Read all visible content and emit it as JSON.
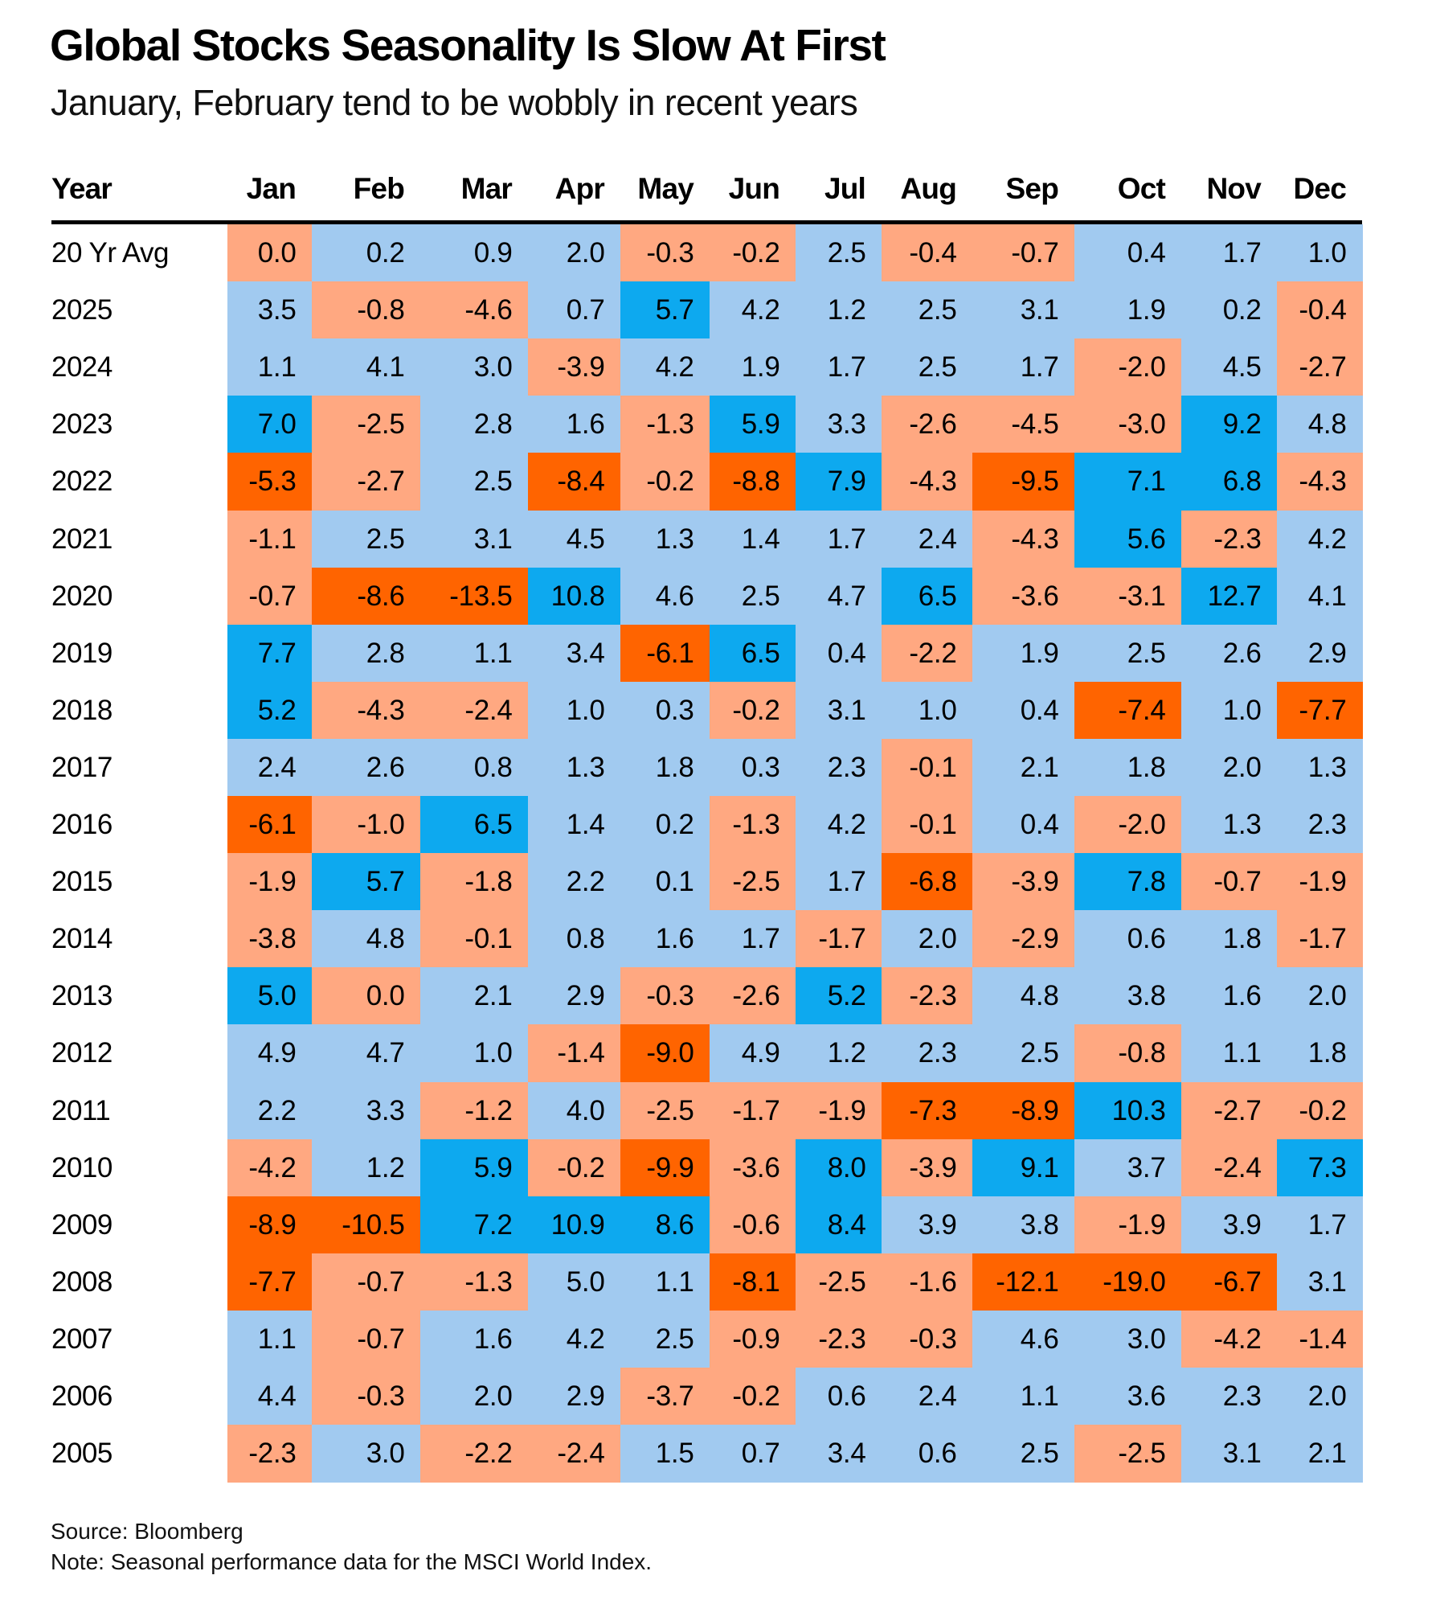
{
  "header": {
    "title": "Global Stocks Seasonality Is Slow At First",
    "subtitle": "January, February tend to be wobbly in recent years"
  },
  "footer": {
    "source": "Source: Bloomberg",
    "note": "Note: Seasonal performance data for the MSCI World Index."
  },
  "colors": {
    "strong_neg": "#FF6400",
    "neg": "#FFA881",
    "pos": "#A1CAF0",
    "strong_pos": "#0DA9EF"
  },
  "chart_data": {
    "type": "heatmap",
    "title": "Global Stocks Seasonality Is Slow At First",
    "subtitle": "January, February tend to be wobbly in recent years",
    "row_header": "Year",
    "columns": [
      "Jan",
      "Feb",
      "Mar",
      "Apr",
      "May",
      "Jun",
      "Jul",
      "Aug",
      "Sep",
      "Oct",
      "Nov",
      "Dec"
    ],
    "legend": "none",
    "color_scale": "diverging: deep orange (<= -5), light orange (<= 0), light blue (> 0), bright blue (>= 5)",
    "rows": [
      {
        "label": "20 Yr Avg",
        "values": [
          "0.0",
          "0.2",
          "0.9",
          "2.0",
          "-0.3",
          "-0.2",
          "2.5",
          "-0.4",
          "-0.7",
          "0.4",
          "1.7",
          "1.0"
        ],
        "shade": [
          "neg",
          "pos",
          "pos",
          "pos",
          "neg",
          "neg",
          "pos",
          "neg",
          "neg",
          "pos",
          "pos",
          "pos"
        ]
      },
      {
        "label": "2025",
        "values": [
          "3.5",
          "-0.8",
          "-4.6",
          "0.7",
          "5.7",
          "4.2",
          "1.2",
          "2.5",
          "3.1",
          "1.9",
          "0.2",
          "-0.4"
        ],
        "shade": [
          "pos",
          "neg",
          "neg",
          "pos",
          "strong_pos",
          "pos",
          "pos",
          "pos",
          "pos",
          "pos",
          "pos",
          "neg"
        ]
      },
      {
        "label": "2024",
        "values": [
          "1.1",
          "4.1",
          "3.0",
          "-3.9",
          "4.2",
          "1.9",
          "1.7",
          "2.5",
          "1.7",
          "-2.0",
          "4.5",
          "-2.7"
        ],
        "shade": [
          "pos",
          "pos",
          "pos",
          "neg",
          "pos",
          "pos",
          "pos",
          "pos",
          "pos",
          "neg",
          "pos",
          "neg"
        ]
      },
      {
        "label": "2023",
        "values": [
          "7.0",
          "-2.5",
          "2.8",
          "1.6",
          "-1.3",
          "5.9",
          "3.3",
          "-2.6",
          "-4.5",
          "-3.0",
          "9.2",
          "4.8"
        ],
        "shade": [
          "strong_pos",
          "neg",
          "pos",
          "pos",
          "neg",
          "strong_pos",
          "pos",
          "neg",
          "neg",
          "neg",
          "strong_pos",
          "pos"
        ]
      },
      {
        "label": "2022",
        "values": [
          "-5.3",
          "-2.7",
          "2.5",
          "-8.4",
          "-0.2",
          "-8.8",
          "7.9",
          "-4.3",
          "-9.5",
          "7.1",
          "6.8",
          "-4.3"
        ],
        "shade": [
          "strong_neg",
          "neg",
          "pos",
          "strong_neg",
          "neg",
          "strong_neg",
          "strong_pos",
          "neg",
          "strong_neg",
          "strong_pos",
          "strong_pos",
          "neg"
        ]
      },
      {
        "label": "2021",
        "values": [
          "-1.1",
          "2.5",
          "3.1",
          "4.5",
          "1.3",
          "1.4",
          "1.7",
          "2.4",
          "-4.3",
          "5.6",
          "-2.3",
          "4.2"
        ],
        "shade": [
          "neg",
          "pos",
          "pos",
          "pos",
          "pos",
          "pos",
          "pos",
          "pos",
          "neg",
          "strong_pos",
          "neg",
          "pos"
        ]
      },
      {
        "label": "2020",
        "values": [
          "-0.7",
          "-8.6",
          "-13.5",
          "10.8",
          "4.6",
          "2.5",
          "4.7",
          "6.5",
          "-3.6",
          "-3.1",
          "12.7",
          "4.1"
        ],
        "shade": [
          "neg",
          "strong_neg",
          "strong_neg",
          "strong_pos",
          "pos",
          "pos",
          "pos",
          "strong_pos",
          "neg",
          "neg",
          "strong_pos",
          "pos"
        ]
      },
      {
        "label": "2019",
        "values": [
          "7.7",
          "2.8",
          "1.1",
          "3.4",
          "-6.1",
          "6.5",
          "0.4",
          "-2.2",
          "1.9",
          "2.5",
          "2.6",
          "2.9"
        ],
        "shade": [
          "strong_pos",
          "pos",
          "pos",
          "pos",
          "strong_neg",
          "strong_pos",
          "pos",
          "neg",
          "pos",
          "pos",
          "pos",
          "pos"
        ]
      },
      {
        "label": "2018",
        "values": [
          "5.2",
          "-4.3",
          "-2.4",
          "1.0",
          "0.3",
          "-0.2",
          "3.1",
          "1.0",
          "0.4",
          "-7.4",
          "1.0",
          "-7.7"
        ],
        "shade": [
          "strong_pos",
          "neg",
          "neg",
          "pos",
          "pos",
          "neg",
          "pos",
          "pos",
          "pos",
          "strong_neg",
          "pos",
          "strong_neg"
        ]
      },
      {
        "label": "2017",
        "values": [
          "2.4",
          "2.6",
          "0.8",
          "1.3",
          "1.8",
          "0.3",
          "2.3",
          "-0.1",
          "2.1",
          "1.8",
          "2.0",
          "1.3"
        ],
        "shade": [
          "pos",
          "pos",
          "pos",
          "pos",
          "pos",
          "pos",
          "pos",
          "neg",
          "pos",
          "pos",
          "pos",
          "pos"
        ]
      },
      {
        "label": "2016",
        "values": [
          "-6.1",
          "-1.0",
          "6.5",
          "1.4",
          "0.2",
          "-1.3",
          "4.2",
          "-0.1",
          "0.4",
          "-2.0",
          "1.3",
          "2.3"
        ],
        "shade": [
          "strong_neg",
          "neg",
          "strong_pos",
          "pos",
          "pos",
          "neg",
          "pos",
          "neg",
          "pos",
          "neg",
          "pos",
          "pos"
        ]
      },
      {
        "label": "2015",
        "values": [
          "-1.9",
          "5.7",
          "-1.8",
          "2.2",
          "0.1",
          "-2.5",
          "1.7",
          "-6.8",
          "-3.9",
          "7.8",
          "-0.7",
          "-1.9"
        ],
        "shade": [
          "neg",
          "strong_pos",
          "neg",
          "pos",
          "pos",
          "neg",
          "pos",
          "strong_neg",
          "neg",
          "strong_pos",
          "neg",
          "neg"
        ]
      },
      {
        "label": "2014",
        "values": [
          "-3.8",
          "4.8",
          "-0.1",
          "0.8",
          "1.6",
          "1.7",
          "-1.7",
          "2.0",
          "-2.9",
          "0.6",
          "1.8",
          "-1.7"
        ],
        "shade": [
          "neg",
          "pos",
          "neg",
          "pos",
          "pos",
          "pos",
          "neg",
          "pos",
          "neg",
          "pos",
          "pos",
          "neg"
        ]
      },
      {
        "label": "2013",
        "values": [
          "5.0",
          "0.0",
          "2.1",
          "2.9",
          "-0.3",
          "-2.6",
          "5.2",
          "-2.3",
          "4.8",
          "3.8",
          "1.6",
          "2.0"
        ],
        "shade": [
          "strong_pos",
          "neg",
          "pos",
          "pos",
          "neg",
          "neg",
          "strong_pos",
          "neg",
          "pos",
          "pos",
          "pos",
          "pos"
        ]
      },
      {
        "label": "2012",
        "values": [
          "4.9",
          "4.7",
          "1.0",
          "-1.4",
          "-9.0",
          "4.9",
          "1.2",
          "2.3",
          "2.5",
          "-0.8",
          "1.1",
          "1.8"
        ],
        "shade": [
          "pos",
          "pos",
          "pos",
          "neg",
          "strong_neg",
          "pos",
          "pos",
          "pos",
          "pos",
          "neg",
          "pos",
          "pos"
        ]
      },
      {
        "label": "2011",
        "values": [
          "2.2",
          "3.3",
          "-1.2",
          "4.0",
          "-2.5",
          "-1.7",
          "-1.9",
          "-7.3",
          "-8.9",
          "10.3",
          "-2.7",
          "-0.2"
        ],
        "shade": [
          "pos",
          "pos",
          "neg",
          "pos",
          "neg",
          "neg",
          "neg",
          "strong_neg",
          "strong_neg",
          "strong_pos",
          "neg",
          "neg"
        ]
      },
      {
        "label": "2010",
        "values": [
          "-4.2",
          "1.2",
          "5.9",
          "-0.2",
          "-9.9",
          "-3.6",
          "8.0",
          "-3.9",
          "9.1",
          "3.7",
          "-2.4",
          "7.3"
        ],
        "shade": [
          "neg",
          "pos",
          "strong_pos",
          "neg",
          "strong_neg",
          "neg",
          "strong_pos",
          "neg",
          "strong_pos",
          "pos",
          "neg",
          "strong_pos"
        ]
      },
      {
        "label": "2009",
        "values": [
          "-8.9",
          "-10.5",
          "7.2",
          "10.9",
          "8.6",
          "-0.6",
          "8.4",
          "3.9",
          "3.8",
          "-1.9",
          "3.9",
          "1.7"
        ],
        "shade": [
          "strong_neg",
          "strong_neg",
          "strong_pos",
          "strong_pos",
          "strong_pos",
          "neg",
          "strong_pos",
          "pos",
          "pos",
          "neg",
          "pos",
          "pos"
        ]
      },
      {
        "label": "2008",
        "values": [
          "-7.7",
          "-0.7",
          "-1.3",
          "5.0",
          "1.1",
          "-8.1",
          "-2.5",
          "-1.6",
          "-12.1",
          "-19.0",
          "-6.7",
          "3.1"
        ],
        "shade": [
          "strong_neg",
          "neg",
          "neg",
          "pos",
          "pos",
          "strong_neg",
          "neg",
          "neg",
          "strong_neg",
          "strong_neg",
          "strong_neg",
          "pos"
        ]
      },
      {
        "label": "2007",
        "values": [
          "1.1",
          "-0.7",
          "1.6",
          "4.2",
          "2.5",
          "-0.9",
          "-2.3",
          "-0.3",
          "4.6",
          "3.0",
          "-4.2",
          "-1.4"
        ],
        "shade": [
          "pos",
          "neg",
          "pos",
          "pos",
          "pos",
          "neg",
          "neg",
          "neg",
          "pos",
          "pos",
          "neg",
          "neg"
        ]
      },
      {
        "label": "2006",
        "values": [
          "4.4",
          "-0.3",
          "2.0",
          "2.9",
          "-3.7",
          "-0.2",
          "0.6",
          "2.4",
          "1.1",
          "3.6",
          "2.3",
          "2.0"
        ],
        "shade": [
          "pos",
          "neg",
          "pos",
          "pos",
          "neg",
          "neg",
          "pos",
          "pos",
          "pos",
          "pos",
          "pos",
          "pos"
        ]
      },
      {
        "label": "2005",
        "values": [
          "-2.3",
          "3.0",
          "-2.2",
          "-2.4",
          "1.5",
          "0.7",
          "3.4",
          "0.6",
          "2.5",
          "-2.5",
          "3.1",
          "2.1"
        ],
        "shade": [
          "neg",
          "pos",
          "neg",
          "neg",
          "pos",
          "pos",
          "pos",
          "pos",
          "pos",
          "neg",
          "pos",
          "pos"
        ]
      }
    ]
  }
}
